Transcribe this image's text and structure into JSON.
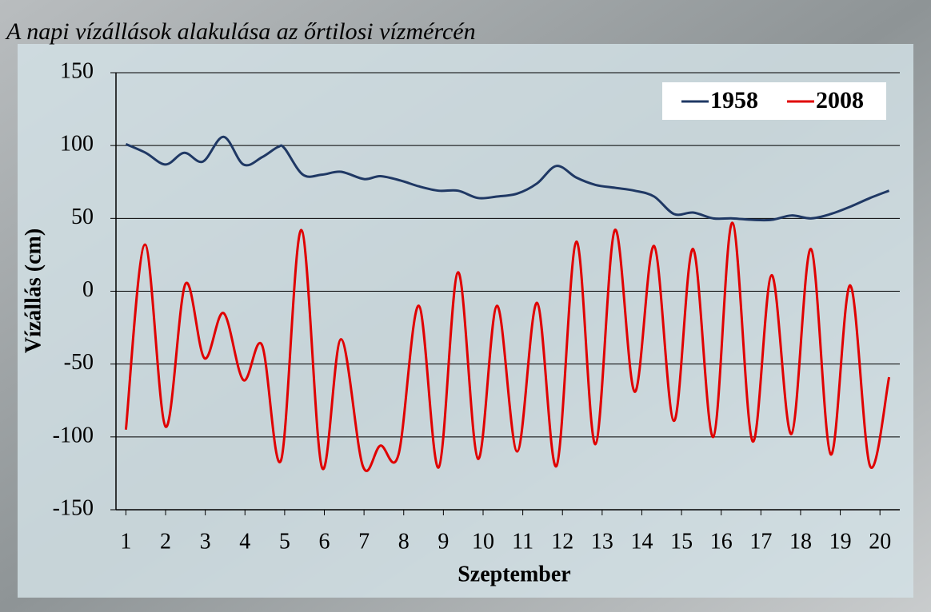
{
  "chart_data": {
    "type": "line",
    "title": "A napi vízállások alakulása az őrtilosi vízmércén",
    "x_label": "Szeptember",
    "y_label": "Vízállás (cm)",
    "xlim": [
      0.75,
      20.5
    ],
    "xticks": [
      1,
      2,
      3,
      4,
      5,
      6,
      7,
      8,
      9,
      10,
      11,
      12,
      13,
      14,
      15,
      16,
      17,
      18,
      19,
      20
    ],
    "ylim": [
      -150,
      150
    ],
    "yticks": [
      -150,
      -100,
      -50,
      0,
      50,
      100,
      150
    ],
    "grid": true,
    "legend": "top-right",
    "series": [
      {
        "name": "1958",
        "color": "#1f3864",
        "x": [
          1,
          1.5,
          2,
          2.47,
          2.94,
          3.46,
          3.96,
          4.43,
          4.83,
          5,
          5.46,
          5.94,
          6.42,
          7,
          7.41,
          7.92,
          8.38,
          8.88,
          9.37,
          9.87,
          10.35,
          10.86,
          11.36,
          11.85,
          12.35,
          12.83,
          13.32,
          13.82,
          14.31,
          14.81,
          15.29,
          15.8,
          16.28,
          16.79,
          17.27,
          17.77,
          18.26,
          18.76,
          19.25,
          19.75,
          20.23
        ],
        "values": [
          101,
          95,
          87,
          95,
          89,
          106,
          87,
          92,
          99,
          98,
          80,
          80,
          82,
          77,
          79,
          76,
          72,
          69,
          69,
          64,
          65,
          67,
          74,
          86,
          78,
          73,
          71,
          69,
          65,
          53,
          54,
          50,
          50,
          49,
          49,
          52,
          50,
          53,
          58,
          64,
          69
        ]
      },
      {
        "name": "2008",
        "color": "#e00000",
        "x": [
          1,
          1.48,
          2,
          2.5,
          2.98,
          3.46,
          3.96,
          4.43,
          4.91,
          5.42,
          5.94,
          6.42,
          6.97,
          7.41,
          7.87,
          8.38,
          8.88,
          9.37,
          9.87,
          10.35,
          10.86,
          11.36,
          11.85,
          12.35,
          12.83,
          13.32,
          13.82,
          14.31,
          14.81,
          15.29,
          15.8,
          16.28,
          16.79,
          17.27,
          17.77,
          18.26,
          18.76,
          19.25,
          19.75,
          20.23
        ],
        "values": [
          -95,
          32,
          -93,
          5,
          -46,
          -15,
          -61,
          -37,
          -116,
          42,
          -121,
          -33,
          -120,
          -106,
          -112,
          -10,
          -121,
          13,
          -115,
          -10,
          -110,
          -8,
          -120,
          34,
          -105,
          42,
          -69,
          31,
          -89,
          29,
          -100,
          47,
          -103,
          11,
          -98,
          29,
          -112,
          4,
          -120,
          -59
        ]
      }
    ]
  }
}
